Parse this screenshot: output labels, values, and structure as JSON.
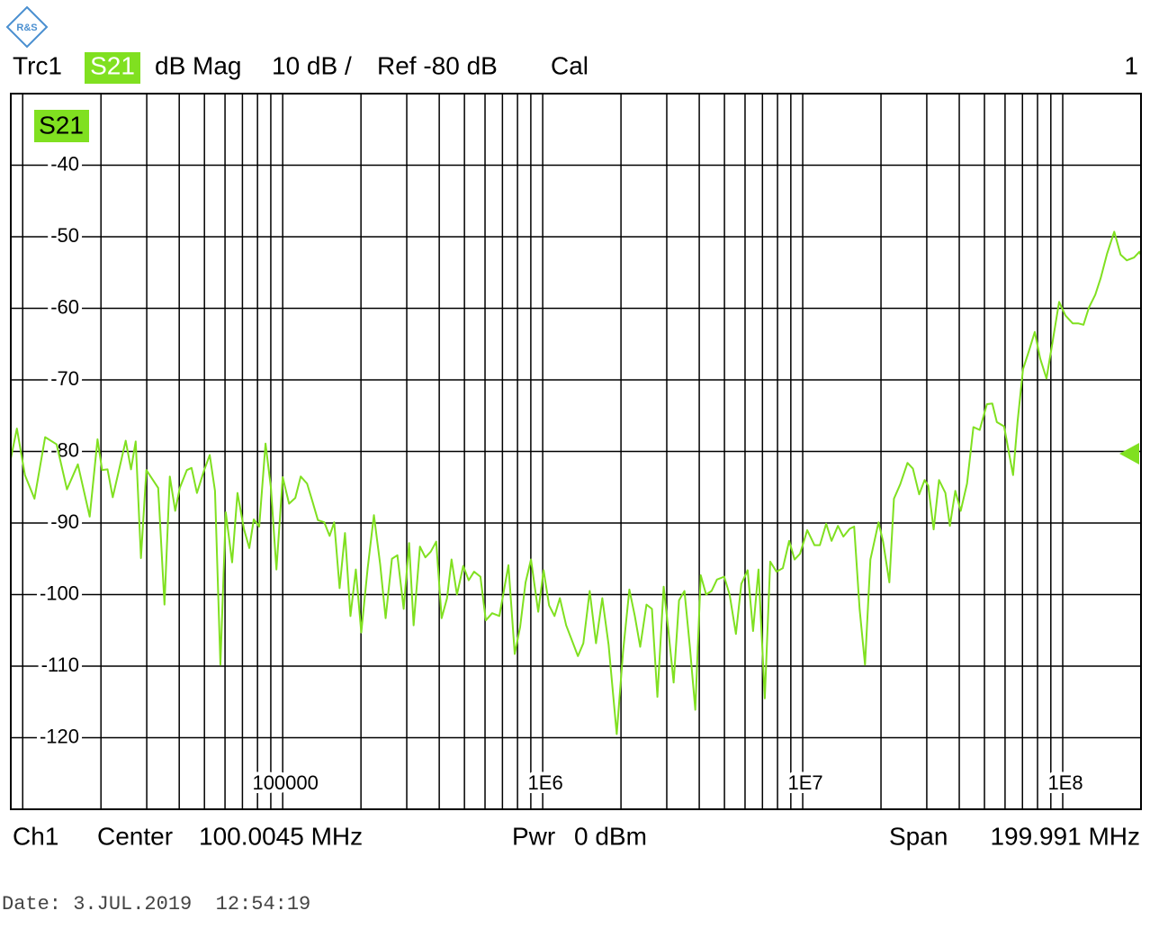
{
  "header": {
    "logo": "R&S",
    "trace": "Trc1",
    "parameter": "S21",
    "format": "dB Mag",
    "scale": "10 dB /",
    "ref": "Ref -80 dB",
    "cal": "Cal",
    "channel_number": "1"
  },
  "chart_data": {
    "type": "line",
    "log_x": true,
    "grid": true,
    "xlim": [
      9000,
      200000000
    ],
    "xticks": [
      100000,
      {
        "value": 1000000,
        "label": "1E6"
      },
      {
        "value": 10000000,
        "label": "1E7"
      },
      {
        "value": 100000000,
        "label": "1E8"
      }
    ],
    "ylim": [
      -130,
      -30
    ],
    "yticks": [
      -40,
      -50,
      -60,
      -70,
      -80,
      -90,
      -100,
      -110,
      -120
    ],
    "x": [
      9000,
      9500,
      10200,
      11100,
      12200,
      13500,
      14800,
      16300,
      18100,
      19400,
      20200,
      21200,
      22200,
      24900,
      26100,
      27200,
      28500,
      29900,
      33200,
      35100,
      36800,
      38600,
      40200,
      42800,
      44600,
      46800,
      49900,
      52400,
      54900,
      57600,
      60400,
      63900,
      67000,
      70900,
      74400,
      77400,
      81200,
      85900,
      90100,
      94600,
      100000,
      105800,
      111800,
      117300,
      124100,
      130200,
      136600,
      144500,
      151500,
      157800,
      165500,
      173600,
      182200,
      191100,
      200500,
      212100,
      224300,
      237100,
      248800,
      263100,
      276100,
      291900,
      306300,
      318800,
      337200,
      353700,
      371100,
      389400,
      408500,
      428600,
      446000,
      467900,
      494800,
      519200,
      544600,
      576000,
      604300,
      639100,
      681300,
      738200,
      780500,
      818900,
      859100,
      901300,
      961000,
      1008000,
      1058000,
      1110000,
      1164000,
      1231000,
      1366000,
      1433000,
      1516000,
      1603000,
      1695000,
      1792000,
      1926000,
      2037000,
      2154000,
      2261000,
      2371000,
      2507000,
      2631000,
      2761000,
      2919000,
      3039000,
      3188000,
      3344000,
      3509000,
      3681000,
      3862000,
      4052000,
      4251000,
      4460000,
      4679000,
      4989000,
      5234000,
      5535000,
      5807000,
      6141000,
      6442000,
      6759000,
      7147000,
      7499000,
      7930000,
      8386000,
      8868000,
      9306000,
      9763000,
      10410000,
      11100000,
      11640000,
      12310000,
      12910000,
      13660000,
      14330000,
      15160000,
      15770000,
      16550000,
      17360000,
      18210000,
      19570000,
      20370000,
      21540000,
      22430000,
      23710000,
      25290000,
      26530000,
      28050000,
      29430000,
      30390000,
      31880000,
      33440000,
      35370000,
      36810000,
      38620000,
      40520000,
      42850000,
      45330000,
      47930000,
      51090000,
      53600000,
      55790000,
      59490000,
      64420000,
      67050000,
      70350000,
      74390000,
      78050000,
      81880000,
      86600000,
      91580000,
      96850000,
      102400000,
      109200000,
      114600000,
      120200000,
      126100000,
      133400000,
      139900000,
      148000000,
      157800000,
      166900000,
      176400000,
      188100000,
      197300000,
      200000000
    ],
    "series": [
      {
        "name": "S21",
        "color": "#80e020",
        "values": [
          -81,
          -76.8,
          -83.3,
          -86.6,
          -78,
          -79,
          -85.3,
          -81.8,
          -89.1,
          -78.3,
          -82.6,
          -82.5,
          -86.4,
          -78.5,
          -82.5,
          -78.6,
          -94.9,
          -82.6,
          -85.1,
          -101.4,
          -83.5,
          -88.3,
          -85.1,
          -82.6,
          -82.3,
          -85.8,
          -82.6,
          -80.5,
          -85.5,
          -109.8,
          -88.5,
          -95.5,
          -85.8,
          -90.8,
          -93.5,
          -89.5,
          -90.5,
          -78.9,
          -85.1,
          -96.5,
          -83.6,
          -87.3,
          -86.5,
          -83.5,
          -84.5,
          -87,
          -89.6,
          -89.9,
          -91.8,
          -89.9,
          -99.1,
          -91.4,
          -103,
          -96.5,
          -105.3,
          -96.4,
          -88.9,
          -95.8,
          -103.3,
          -95,
          -94.5,
          -102,
          -92.8,
          -104.3,
          -93.3,
          -94.8,
          -94,
          -92.6,
          -103.3,
          -100.5,
          -95.1,
          -100,
          -96,
          -98,
          -96.8,
          -97.5,
          -103.6,
          -102.6,
          -103,
          -95.9,
          -108.3,
          -104.5,
          -98.3,
          -95.1,
          -102.4,
          -96.6,
          -101.5,
          -103,
          -100.5,
          -104.3,
          -108.6,
          -106.8,
          -99.5,
          -106.8,
          -100.5,
          -107,
          -119.5,
          -108,
          -99.3,
          -103,
          -107.3,
          -101.4,
          -102,
          -114.3,
          -98.9,
          -104.8,
          -112.3,
          -100.8,
          -99.5,
          -107.3,
          -116.1,
          -97.3,
          -100,
          -99.5,
          -97.9,
          -97.5,
          -100,
          -105.5,
          -98.5,
          -96.6,
          -105.1,
          -96.5,
          -114.5,
          -95.4,
          -96.8,
          -96.3,
          -92.5,
          -95.1,
          -94.3,
          -91,
          -93.1,
          -93.1,
          -90.1,
          -92.5,
          -90.4,
          -91.9,
          -90.8,
          -90.5,
          -102,
          -109.8,
          -95.1,
          -89.9,
          -92.6,
          -98.3,
          -86.6,
          -84.6,
          -81.6,
          -82.4,
          -86,
          -84,
          -84.8,
          -90.9,
          -84,
          -85.8,
          -90.4,
          -85.5,
          -88.3,
          -84.5,
          -76.6,
          -77,
          -73.4,
          -73.3,
          -75.9,
          -76.5,
          -83.3,
          -75.8,
          -68.5,
          -65.8,
          -63.3,
          -67,
          -69.8,
          -64.5,
          -59.1,
          -61,
          -62.1,
          -62.1,
          -62.3,
          -59.9,
          -58.1,
          -55.8,
          -52.4,
          -49.3,
          -52.5,
          -53.3,
          -52.9,
          -52.1,
          -52.6
        ]
      }
    ]
  },
  "footer": {
    "channel": "Ch1",
    "center_label": "Center",
    "center": "100.0045 MHz",
    "power_label": "Pwr",
    "power": "0 dBm",
    "span_label": "Span",
    "span": "199.991 MHz"
  },
  "date": "Date: 3.JUL.2019  12:54:19"
}
